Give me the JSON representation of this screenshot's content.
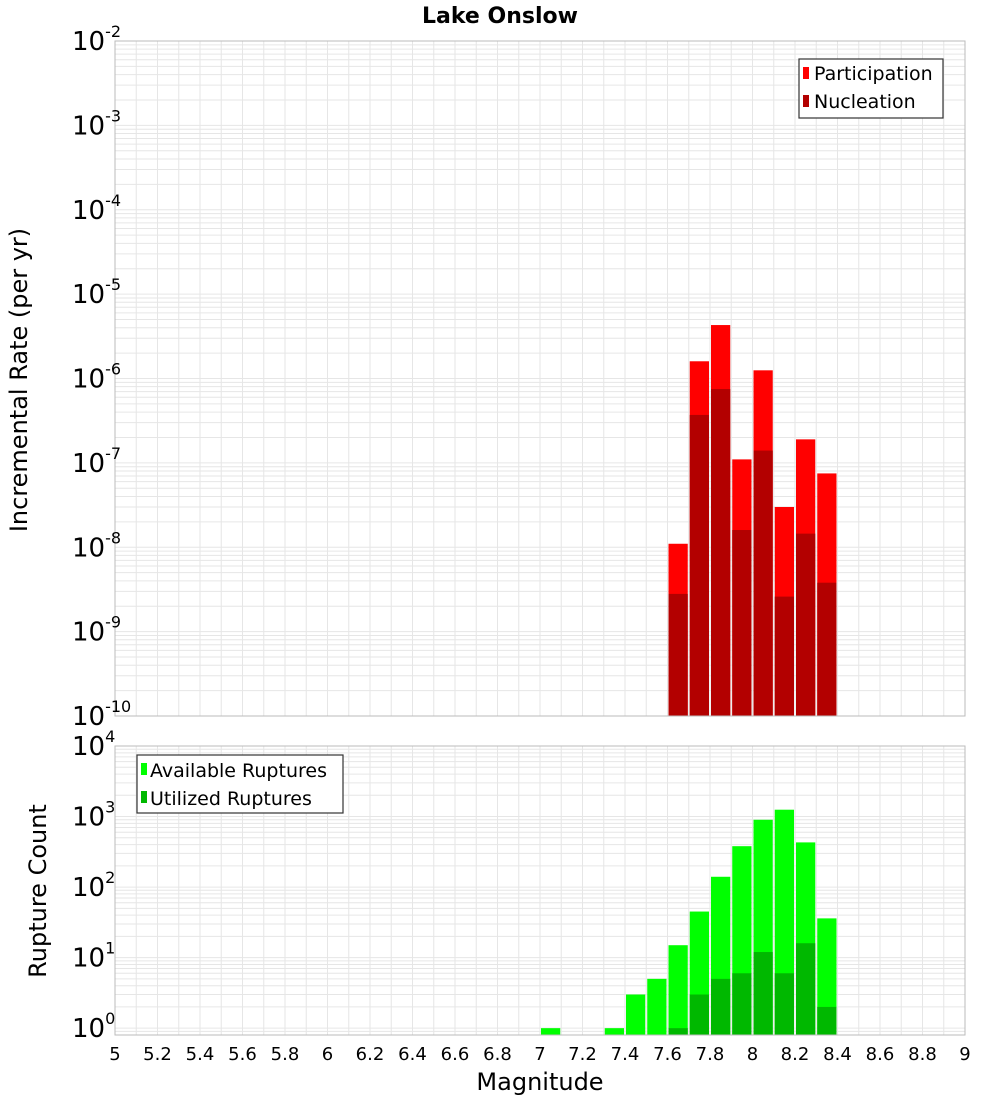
{
  "title": "Lake Onslow",
  "colors": {
    "participation": "#ff0000",
    "nucleation": "#b30000",
    "available": "#00ff00",
    "utilized": "#00b800",
    "grid": "#e6e6e6",
    "frame": "#bbbbbb"
  },
  "chart_data": [
    {
      "type": "bar",
      "name": "rate-panel",
      "scale": "log",
      "ylabel": "Incremental Rate (per yr)",
      "ylim": [
        1e-10,
        0.01
      ],
      "xlim": [
        5,
        9
      ],
      "bin_width": 0.1,
      "y_ticks": [
        {
          "base": "10",
          "exp": "-10",
          "value": 1e-10
        },
        {
          "base": "10",
          "exp": "-9",
          "value": 1e-09
        },
        {
          "base": "10",
          "exp": "-8",
          "value": 1e-08
        },
        {
          "base": "10",
          "exp": "-7",
          "value": 1e-07
        },
        {
          "base": "10",
          "exp": "-6",
          "value": 1e-06
        },
        {
          "base": "10",
          "exp": "-5",
          "value": 1e-05
        },
        {
          "base": "10",
          "exp": "-4",
          "value": 0.0001
        },
        {
          "base": "10",
          "exp": "-3",
          "value": 0.001
        },
        {
          "base": "10",
          "exp": "-2",
          "value": 0.01
        }
      ],
      "legend": [
        "Participation",
        "Nucleation"
      ],
      "legend_position": "top-right",
      "series": [
        {
          "name": "Participation",
          "x": [
            7.65,
            7.75,
            7.85,
            7.95,
            8.05,
            8.15,
            8.25,
            8.35
          ],
          "values": [
            1.1e-08,
            1.6e-06,
            4.3e-06,
            1.1e-07,
            1.25e-06,
            3e-08,
            1.9e-07,
            7.5e-08
          ]
        },
        {
          "name": "Nucleation",
          "x": [
            7.65,
            7.75,
            7.85,
            7.95,
            8.05,
            8.15,
            8.25,
            8.35
          ],
          "values": [
            2.8e-09,
            3.7e-07,
            7.5e-07,
            1.6e-08,
            1.4e-07,
            2.6e-09,
            1.45e-08,
            3.8e-09
          ]
        }
      ]
    },
    {
      "type": "bar",
      "name": "count-panel",
      "scale": "log",
      "ylabel": "Rupture Count",
      "xlabel": "Magnitude",
      "ylim": [
        0.8,
        10000
      ],
      "xlim": [
        5,
        9
      ],
      "bin_width": 0.1,
      "y_ticks": [
        {
          "base": "10",
          "exp": "0",
          "value": 1
        },
        {
          "base": "10",
          "exp": "1",
          "value": 10
        },
        {
          "base": "10",
          "exp": "2",
          "value": 100
        },
        {
          "base": "10",
          "exp": "3",
          "value": 1000
        },
        {
          "base": "10",
          "exp": "4",
          "value": 10000
        }
      ],
      "x_ticks": [
        "5",
        "5.2",
        "5.4",
        "5.6",
        "5.8",
        "6",
        "6.2",
        "6.4",
        "6.6",
        "6.8",
        "7",
        "7.2",
        "7.4",
        "7.6",
        "7.8",
        "8",
        "8.2",
        "8.4",
        "8.6",
        "8.8",
        "9"
      ],
      "legend": [
        "Available Ruptures",
        "Utilized Ruptures"
      ],
      "legend_position": "top-left",
      "series": [
        {
          "name": "Available Ruptures",
          "x": [
            7.05,
            7.35,
            7.45,
            7.55,
            7.65,
            7.75,
            7.85,
            7.95,
            8.05,
            8.15,
            8.25,
            8.35
          ],
          "values": [
            1,
            1,
            3,
            5,
            15,
            45,
            140,
            380,
            900,
            1250,
            430,
            36
          ]
        },
        {
          "name": "Utilized Ruptures",
          "x": [
            7.65,
            7.75,
            7.85,
            7.95,
            8.05,
            8.15,
            8.25,
            8.35
          ],
          "values": [
            1,
            3,
            5,
            6,
            12,
            6,
            16,
            2
          ]
        }
      ]
    }
  ]
}
